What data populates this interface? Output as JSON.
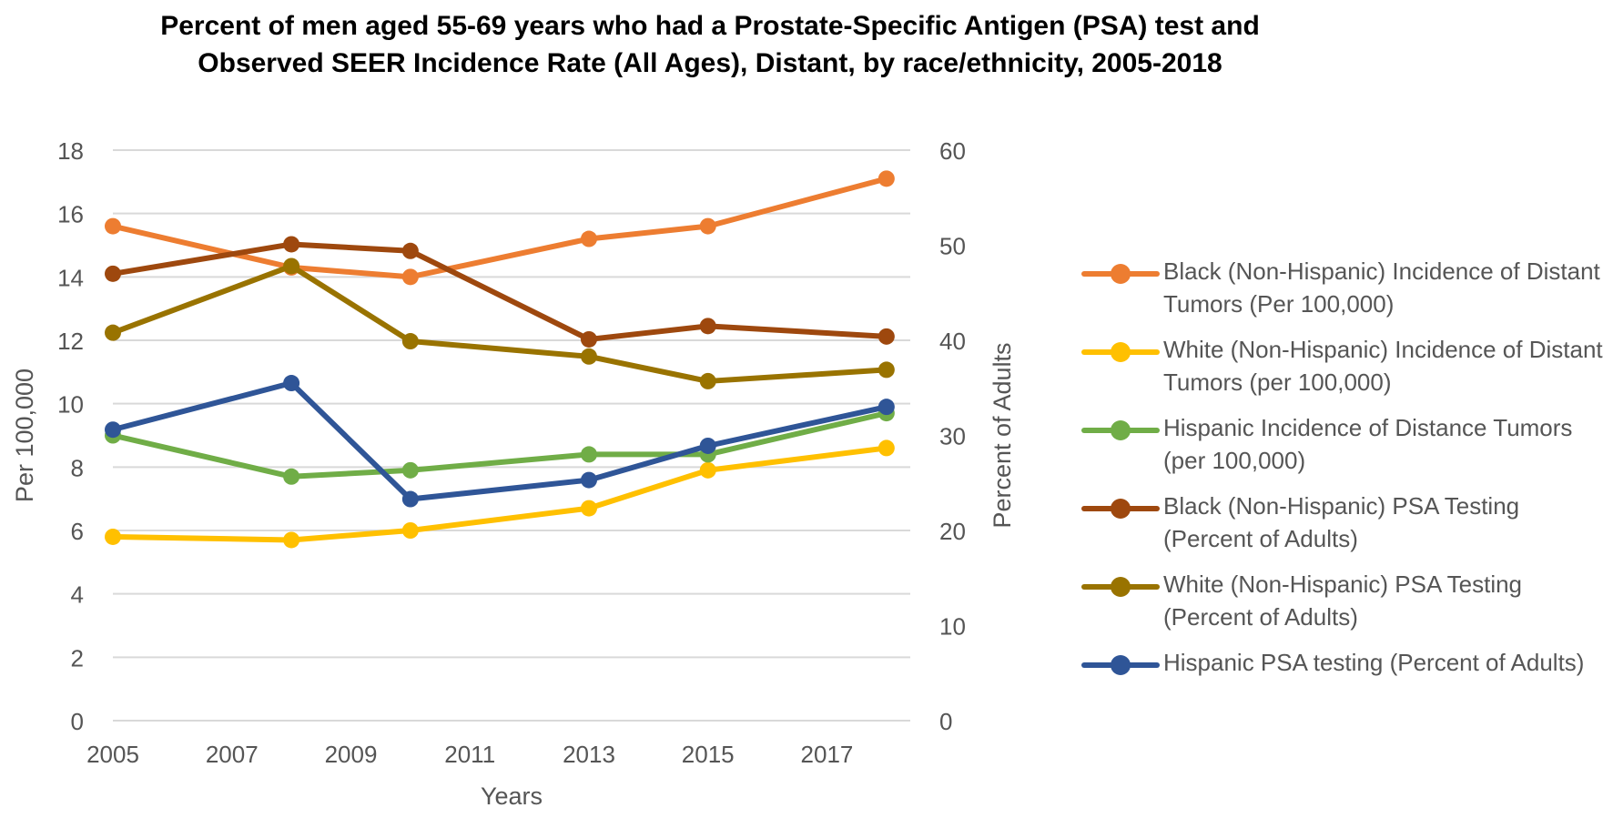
{
  "chart_data": {
    "type": "line",
    "title": "Percent of men aged 55-69 years who had a Prostate-Specific Antigen (PSA) test and Observed SEER Incidence Rate (All Ages), Distant, by race/ethnicity, 2005-2018",
    "xlabel": "Years",
    "ylabel": "Per 100,000",
    "y2label": "Percent of Adults",
    "xlim": [
      2005,
      2018.4
    ],
    "ylim": [
      0,
      18
    ],
    "y2lim": [
      0,
      60
    ],
    "x_ticks": [
      2005,
      2007,
      2009,
      2011,
      2013,
      2015,
      2017
    ],
    "y_ticks": [
      0,
      2,
      4,
      6,
      8,
      10,
      12,
      14,
      16,
      18
    ],
    "y2_ticks": [
      0,
      10,
      20,
      30,
      40,
      50,
      60
    ],
    "grid": true,
    "legend_position": "right",
    "series": [
      {
        "name": "Black (Non-Hispanic) Incidence of Distant Tumors (Per 100,000)",
        "axis": "left",
        "color": "#ED7D31",
        "x": [
          2005,
          2008,
          2010,
          2013,
          2015,
          2018
        ],
        "values": [
          15.6,
          14.3,
          14.0,
          15.2,
          15.6,
          17.1
        ]
      },
      {
        "name": "White (Non-Hispanic) Incidence of Distant Tumors (per 100,000)",
        "axis": "left",
        "color": "#FFC000",
        "x": [
          2005,
          2008,
          2010,
          2013,
          2015,
          2018
        ],
        "values": [
          5.8,
          5.7,
          6.0,
          6.7,
          7.9,
          8.6
        ]
      },
      {
        "name": "Hispanic Incidence of Distance Tumors (per 100,000)",
        "axis": "left",
        "color": "#70AD47",
        "x": [
          2005,
          2008,
          2010,
          2013,
          2015,
          2018
        ],
        "values": [
          9.0,
          7.7,
          7.9,
          8.4,
          8.4,
          9.7
        ]
      },
      {
        "name": "Black (Non-Hispanic) PSA Testing (Percent of Adults)",
        "axis": "right",
        "color": "#9E480E",
        "x": [
          2005,
          2008,
          2010,
          2013,
          2015,
          2018
        ],
        "values": [
          47.0,
          50.1,
          49.4,
          40.1,
          41.5,
          40.4
        ]
      },
      {
        "name": "White (Non-Hispanic) PSA Testing (Percent of Adults)",
        "axis": "right",
        "color": "#997300",
        "x": [
          2005,
          2008,
          2010,
          2013,
          2015,
          2018
        ],
        "values": [
          40.8,
          47.8,
          39.9,
          38.3,
          35.7,
          36.9
        ]
      },
      {
        "name": "Hispanic PSA testing (Percent of Adults)",
        "axis": "right",
        "color": "#2F5597",
        "x": [
          2005,
          2008,
          2010,
          2013,
          2015,
          2018
        ],
        "values": [
          30.6,
          35.5,
          23.3,
          25.3,
          28.9,
          33.0
        ]
      }
    ]
  }
}
